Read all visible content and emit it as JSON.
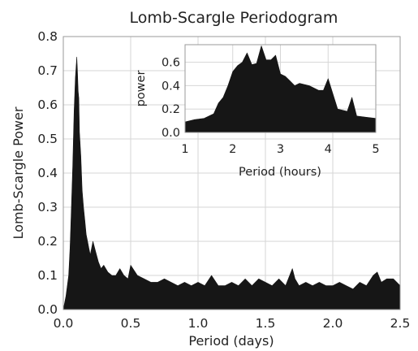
{
  "chart_data": [
    {
      "type": "area",
      "title": "Lomb-Scargle Periodogram",
      "xlabel": "Period (days)",
      "ylabel": "Lomb-Scargle Power",
      "xlim": [
        0.0,
        2.5
      ],
      "ylim": [
        0.0,
        0.8
      ],
      "xticks": [
        "0.0",
        "0.5",
        "1.0",
        "1.5",
        "2.0",
        "2.5"
      ],
      "yticks": [
        "0.0",
        "0.1",
        "0.2",
        "0.3",
        "0.4",
        "0.5",
        "0.6",
        "0.7",
        "0.8"
      ],
      "grid": true,
      "fill": "#161616",
      "series": [
        {
          "x": [
            0.0,
            0.02,
            0.04,
            0.05,
            0.06,
            0.07,
            0.08,
            0.09,
            0.1,
            0.105,
            0.11,
            0.115,
            0.12,
            0.13,
            0.14,
            0.15,
            0.16,
            0.17,
            0.18,
            0.19,
            0.2,
            0.22,
            0.24,
            0.26,
            0.28,
            0.3,
            0.33,
            0.36,
            0.39,
            0.42,
            0.45,
            0.48,
            0.5,
            0.55,
            0.6,
            0.65,
            0.7,
            0.75,
            0.8,
            0.85,
            0.9,
            0.95,
            1.0,
            1.05,
            1.1,
            1.15,
            1.2,
            1.25,
            1.3,
            1.35,
            1.4,
            1.45,
            1.5,
            1.55,
            1.6,
            1.65,
            1.7,
            1.72,
            1.75,
            1.8,
            1.85,
            1.9,
            1.95,
            2.0,
            2.05,
            2.1,
            2.15,
            2.2,
            2.25,
            2.3,
            2.33,
            2.36,
            2.4,
            2.45,
            2.5
          ],
          "y": [
            0.0,
            0.04,
            0.1,
            0.18,
            0.3,
            0.42,
            0.58,
            0.68,
            0.74,
            0.7,
            0.64,
            0.62,
            0.52,
            0.45,
            0.35,
            0.3,
            0.26,
            0.22,
            0.2,
            0.18,
            0.16,
            0.2,
            0.17,
            0.14,
            0.12,
            0.13,
            0.11,
            0.1,
            0.1,
            0.12,
            0.1,
            0.09,
            0.13,
            0.1,
            0.09,
            0.08,
            0.08,
            0.09,
            0.08,
            0.07,
            0.08,
            0.07,
            0.08,
            0.07,
            0.1,
            0.07,
            0.07,
            0.08,
            0.07,
            0.09,
            0.07,
            0.09,
            0.08,
            0.07,
            0.09,
            0.07,
            0.12,
            0.09,
            0.07,
            0.08,
            0.07,
            0.08,
            0.07,
            0.07,
            0.08,
            0.07,
            0.06,
            0.08,
            0.07,
            0.1,
            0.11,
            0.08,
            0.09,
            0.09,
            0.07
          ]
        }
      ]
    },
    {
      "type": "area",
      "title": "",
      "xlabel": "Period (hours)",
      "ylabel": "power",
      "xlim": [
        1,
        5
      ],
      "ylim": [
        0.0,
        0.75
      ],
      "xticks": [
        "1",
        "2",
        "3",
        "4",
        "5"
      ],
      "yticks": [
        "0.0",
        "0.2",
        "0.4",
        "0.6"
      ],
      "grid": true,
      "fill": "#161616",
      "series": [
        {
          "x": [
            1.0,
            1.2,
            1.4,
            1.6,
            1.7,
            1.8,
            1.9,
            2.0,
            2.1,
            2.2,
            2.3,
            2.4,
            2.5,
            2.6,
            2.7,
            2.8,
            2.9,
            3.0,
            3.1,
            3.2,
            3.3,
            3.4,
            3.6,
            3.8,
            3.9,
            4.0,
            4.2,
            4.4,
            4.5,
            4.6,
            4.8,
            5.0
          ],
          "y": [
            0.09,
            0.11,
            0.12,
            0.16,
            0.25,
            0.3,
            0.4,
            0.52,
            0.57,
            0.6,
            0.68,
            0.58,
            0.59,
            0.74,
            0.62,
            0.62,
            0.66,
            0.5,
            0.48,
            0.44,
            0.4,
            0.42,
            0.4,
            0.36,
            0.36,
            0.46,
            0.2,
            0.18,
            0.3,
            0.14,
            0.13,
            0.12
          ]
        }
      ]
    }
  ]
}
